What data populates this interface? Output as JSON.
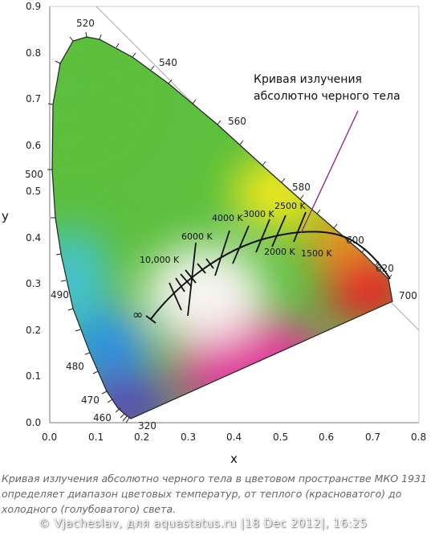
{
  "axes": {
    "x_title": "x",
    "y_title": "y",
    "x_ticks": [
      "0.0",
      "0.1",
      "0.2",
      "0.3",
      "0.4",
      "0.5",
      "0.6",
      "0.7",
      "0.8"
    ],
    "y_ticks": [
      "0.0",
      "0.1",
      "0.2",
      "0.3",
      "0.4",
      "0.5",
      "0.6",
      "0.7",
      "0.8",
      "0.9"
    ]
  },
  "wavelength_labels": {
    "w320": "320",
    "w460": "460",
    "w470": "470",
    "w480": "480",
    "w490": "490",
    "w500": "500",
    "w520": "520",
    "w540": "540",
    "w560": "560",
    "w580": "580",
    "w600": "600",
    "w620": "620",
    "w700": "700"
  },
  "planckian": {
    "annotation_line1": "Кривая излучения",
    "annotation_line2": "абсолютно черного тела",
    "infinity": "∞",
    "temperatures": {
      "t10000": "10,000 K",
      "t6000": "6000 K",
      "t4000": "4000 K",
      "t3000": "3000 K",
      "t2500": "2500 K",
      "t2000": "2000 K",
      "t1500": "1500 K"
    }
  },
  "caption": "Кривая излучения абсолютно черного тела в цветовом пространстве МКО 1931 определяет диапазон цветовых температур, от теплого (красноватого) до холодного (голубоватого) света.",
  "watermark": "© Vjacheslav, для aquastatus.ru |18 Dec 2012|, 16:25",
  "colors": {
    "green": "#5cbf3d",
    "yellow": "#f5ea1c",
    "orange": "#f6931d",
    "red": "#e8242a",
    "magenta": "#e0359a",
    "blue": "#2c8fe6",
    "violet": "#5a45b4",
    "cyan": "#44c3d6",
    "white_point": "#f7f4f2",
    "annotation_line": "#8b2a8b"
  }
}
